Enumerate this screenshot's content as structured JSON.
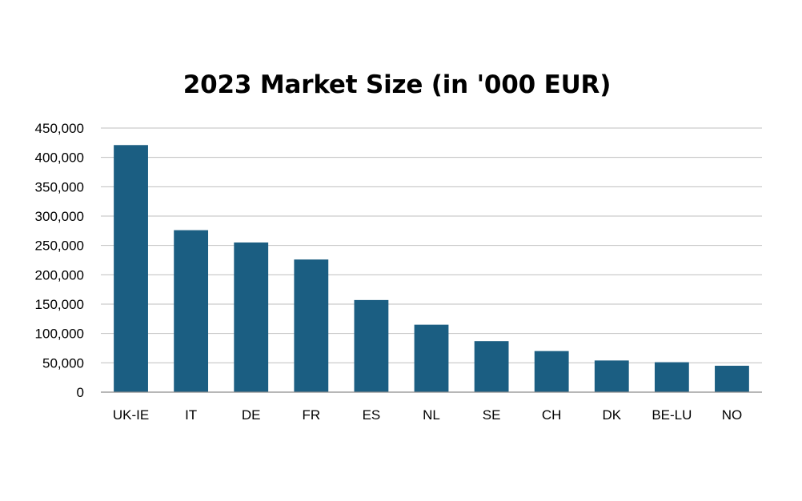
{
  "chart_data": {
    "type": "bar",
    "title": "2023 Market Size (in '000 EUR)",
    "xlabel": "",
    "ylabel": "",
    "categories": [
      "UK-IE",
      "IT",
      "DE",
      "FR",
      "ES",
      "NL",
      "SE",
      "CH",
      "DK",
      "BE-LU",
      "NO"
    ],
    "values": [
      421000,
      276000,
      255000,
      226000,
      157000,
      115000,
      87000,
      70000,
      54000,
      51000,
      45000
    ],
    "ylim": [
      0,
      450000
    ],
    "yticks": [
      0,
      50000,
      100000,
      150000,
      200000,
      250000,
      300000,
      350000,
      400000,
      450000
    ],
    "ytick_labels": [
      "0",
      "50,000",
      "100,000",
      "150,000",
      "200,000",
      "250,000",
      "300,000",
      "350,000",
      "400,000",
      "450,000"
    ],
    "grid": true,
    "legend": "none",
    "bar_color": "#1b5e82"
  }
}
